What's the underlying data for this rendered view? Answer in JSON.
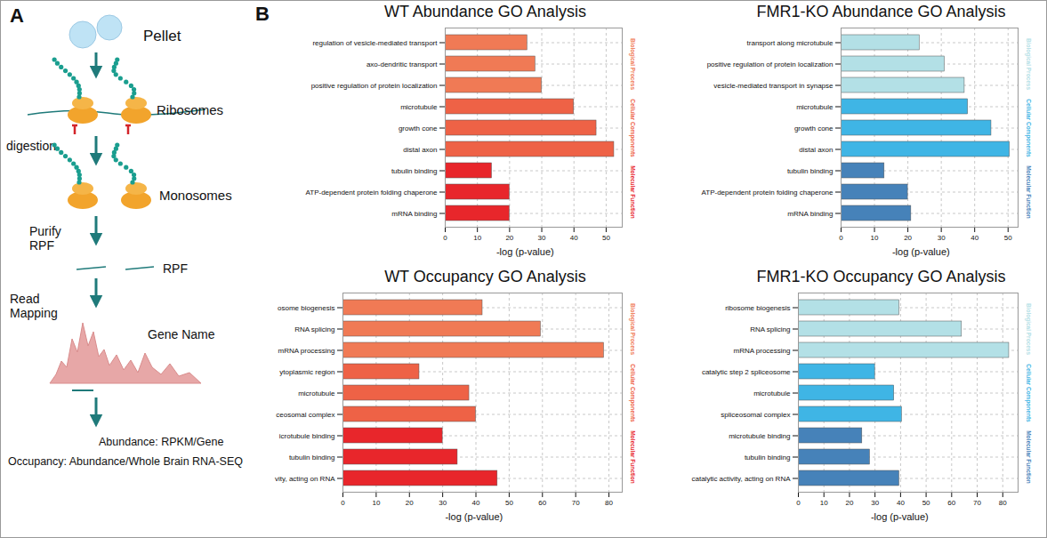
{
  "panel_a": {
    "letter": "A",
    "steps": {
      "pellet": "Pellet",
      "ribosomes": "Ribosomes",
      "digestion": "digestion",
      "monosomes": "Monosomes",
      "purify": "Purify RPF",
      "rpf": "RPF",
      "read_mapping": "Read Mapping",
      "gene_name": "Gene Name"
    },
    "outputs": [
      "Abundance: RPKM/Gene",
      "Occupancy: Abundance/Whole Brain RNA-SEQ"
    ]
  },
  "panel_b_letter": "B",
  "chart_data": [
    {
      "type": "bar",
      "orientation": "horizontal",
      "title": "WT Abundance GO Analysis",
      "xlabel": "-log (p-value)",
      "xlim": [
        0,
        55
      ],
      "xticks": [
        0,
        10,
        20,
        30,
        40,
        50
      ],
      "grid": true,
      "legend": "right",
      "series": [
        {
          "name": "Biological Process",
          "color": "#f07a55",
          "categories": [
            "regulation of vesicle-mediated transport",
            "axo-dendritic transport",
            "positive regulation of protein localization"
          ],
          "values": [
            25.5,
            28,
            30
          ]
        },
        {
          "name": "Cellular Components",
          "color": "#ee6246",
          "categories": [
            "microtubule",
            "growth cone",
            "distal axon"
          ],
          "values": [
            40,
            47,
            52.5
          ]
        },
        {
          "name": "Molecular Function",
          "color": "#e8262b",
          "categories": [
            "tubulin binding",
            "ATP-dependent protein folding chaperone",
            "mRNA binding"
          ],
          "values": [
            14.5,
            20,
            20
          ]
        }
      ]
    },
    {
      "type": "bar",
      "orientation": "horizontal",
      "title": "FMR1-KO Abundance GO Analysis",
      "xlabel": "-log (p-value)",
      "xlim": [
        0,
        53
      ],
      "xticks": [
        0,
        10,
        20,
        30,
        40,
        50
      ],
      "grid": true,
      "legend": "right",
      "series": [
        {
          "name": "Biological Process",
          "color": "#b3e0e6",
          "categories": [
            "transport along microtubule",
            "positive regulation of protein localization",
            "vesicle-mediated transport in synapse"
          ],
          "values": [
            23.5,
            31,
            37
          ]
        },
        {
          "name": "Cellular Components",
          "color": "#3fb5e5",
          "categories": [
            "microtubule",
            "growth cone",
            "distal axon"
          ],
          "values": [
            38,
            45,
            50.5
          ]
        },
        {
          "name": "Molecular Function",
          "color": "#4682b9",
          "categories": [
            "tubulin binding",
            "ATP-dependent protein folding chaperone",
            "mRNA binding"
          ],
          "values": [
            13,
            20,
            21
          ]
        }
      ]
    },
    {
      "type": "bar",
      "orientation": "horizontal",
      "title": "WT Occupancy GO Analysis",
      "xlabel": "-log (p-value)",
      "xlim": [
        0,
        84
      ],
      "xticks": [
        0,
        10,
        20,
        30,
        40,
        50,
        60,
        70,
        80
      ],
      "grid": true,
      "legend": "right",
      "series": [
        {
          "name": "Biological Process",
          "color": "#f07a55",
          "categories": [
            "osome biogenesis",
            "RNA splicing",
            "mRNA processing"
          ],
          "values": [
            42,
            59.5,
            78.5
          ]
        },
        {
          "name": "Cellular Components",
          "color": "#ee6246",
          "categories": [
            "ytoplasmic region",
            "microtubule",
            "ceosomal complex"
          ],
          "values": [
            23,
            38,
            40
          ]
        },
        {
          "name": "Molecular Function",
          "color": "#e8262b",
          "categories": [
            "icrotubule binding",
            "tubulin binding",
            "vity, acting on RNA"
          ],
          "values": [
            30,
            34.5,
            46.5
          ]
        }
      ]
    },
    {
      "type": "bar",
      "orientation": "horizontal",
      "title": "FMR1-KO Occupancy GO Analysis",
      "xlabel": "-log (p-value)",
      "xlim": [
        0,
        86
      ],
      "xticks": [
        0,
        10,
        20,
        30,
        40,
        50,
        60,
        70,
        80
      ],
      "grid": true,
      "legend": "right",
      "series": [
        {
          "name": "Biological Process",
          "color": "#b3e0e6",
          "categories": [
            "ribosome biogenesis",
            "RNA splicing",
            "mRNA processing"
          ],
          "values": [
            39.5,
            64,
            82.5
          ]
        },
        {
          "name": "Cellular Components",
          "color": "#3fb5e5",
          "categories": [
            "catalytic step 2 spliceosome",
            "microtubule",
            "spliceosomal complex"
          ],
          "values": [
            30,
            37.5,
            40.5
          ]
        },
        {
          "name": "Molecular Function",
          "color": "#4682b9",
          "categories": [
            "microtubule binding",
            "tubulin binding",
            "catalytic activity, acting on RNA"
          ],
          "values": [
            25,
            28,
            39.5
          ]
        }
      ]
    }
  ]
}
